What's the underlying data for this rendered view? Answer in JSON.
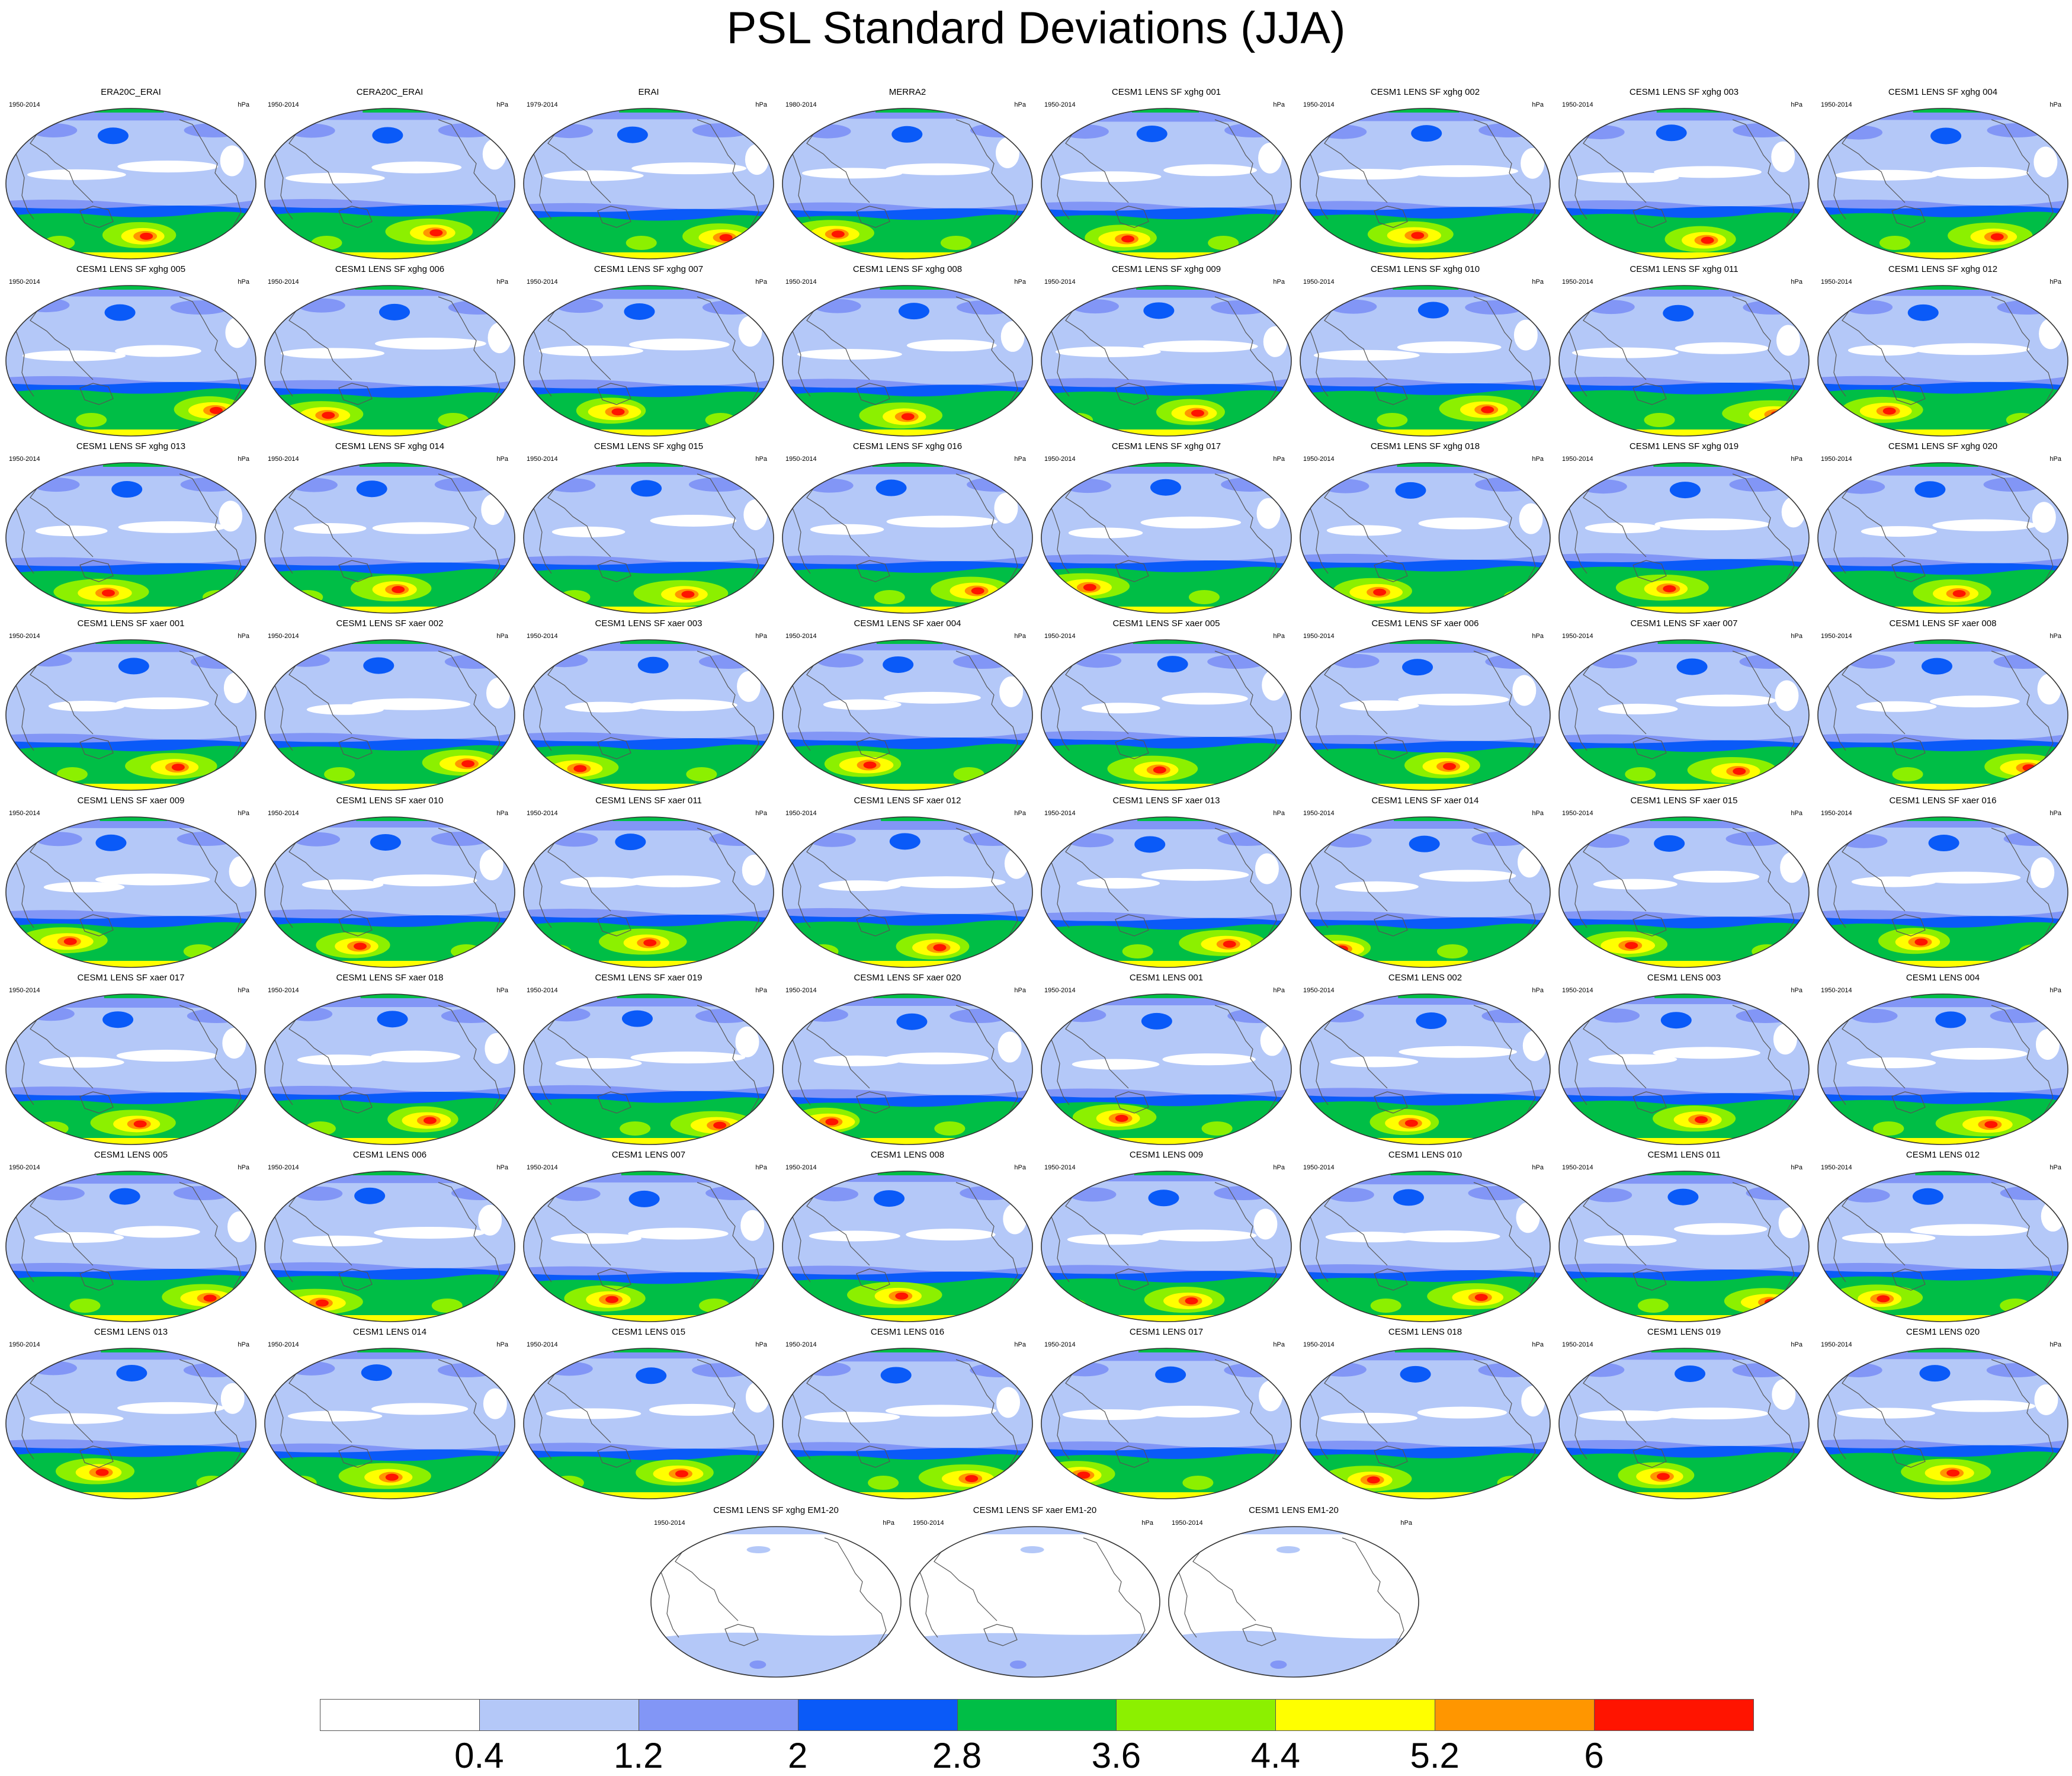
{
  "title": "PSL Standard Deviations (JJA)",
  "chart_data": {
    "type": "heatmap",
    "title": "PSL Standard Deviations (JJA)",
    "season": "JJA",
    "variable": "PSL",
    "units": "hPa",
    "projection": "global map (Robinson-like, Pacific-centered)",
    "panels": [
      {
        "name": "ERA20C_ERAI",
        "period": "1950-2014",
        "units": "hPa"
      },
      {
        "name": "CERA20C_ERAI",
        "period": "1950-2014",
        "units": "hPa"
      },
      {
        "name": "ERAI",
        "period": "1979-2014",
        "units": "hPa"
      },
      {
        "name": "MERRA2",
        "period": "1980-2014",
        "units": "hPa"
      },
      {
        "name": "CESM1 LENS SF xghg 001",
        "period": "1950-2014",
        "units": "hPa"
      },
      {
        "name": "CESM1 LENS SF xghg 002",
        "period": "1950-2014",
        "units": "hPa"
      },
      {
        "name": "CESM1 LENS SF xghg 003",
        "period": "1950-2014",
        "units": "hPa"
      },
      {
        "name": "CESM1 LENS SF xghg 004",
        "period": "1950-2014",
        "units": "hPa"
      },
      {
        "name": "CESM1 LENS SF xghg 005",
        "period": "1950-2014",
        "units": "hPa"
      },
      {
        "name": "CESM1 LENS SF xghg 006",
        "period": "1950-2014",
        "units": "hPa"
      },
      {
        "name": "CESM1 LENS SF xghg 007",
        "period": "1950-2014",
        "units": "hPa"
      },
      {
        "name": "CESM1 LENS SF xghg 008",
        "period": "1950-2014",
        "units": "hPa"
      },
      {
        "name": "CESM1 LENS SF xghg 009",
        "period": "1950-2014",
        "units": "hPa"
      },
      {
        "name": "CESM1 LENS SF xghg 010",
        "period": "1950-2014",
        "units": "hPa"
      },
      {
        "name": "CESM1 LENS SF xghg 011",
        "period": "1950-2014",
        "units": "hPa"
      },
      {
        "name": "CESM1 LENS SF xghg 012",
        "period": "1950-2014",
        "units": "hPa"
      },
      {
        "name": "CESM1 LENS SF xghg 013",
        "period": "1950-2014",
        "units": "hPa"
      },
      {
        "name": "CESM1 LENS SF xghg 014",
        "period": "1950-2014",
        "units": "hPa"
      },
      {
        "name": "CESM1 LENS SF xghg 015",
        "period": "1950-2014",
        "units": "hPa"
      },
      {
        "name": "CESM1 LENS SF xghg 016",
        "period": "1950-2014",
        "units": "hPa"
      },
      {
        "name": "CESM1 LENS SF xghg 017",
        "period": "1950-2014",
        "units": "hPa"
      },
      {
        "name": "CESM1 LENS SF xghg 018",
        "period": "1950-2014",
        "units": "hPa"
      },
      {
        "name": "CESM1 LENS SF xghg 019",
        "period": "1950-2014",
        "units": "hPa"
      },
      {
        "name": "CESM1 LENS SF xghg 020",
        "period": "1950-2014",
        "units": "hPa"
      },
      {
        "name": "CESM1 LENS SF xaer 001",
        "period": "1950-2014",
        "units": "hPa"
      },
      {
        "name": "CESM1 LENS SF xaer 002",
        "period": "1950-2014",
        "units": "hPa"
      },
      {
        "name": "CESM1 LENS SF xaer 003",
        "period": "1950-2014",
        "units": "hPa"
      },
      {
        "name": "CESM1 LENS SF xaer 004",
        "period": "1950-2014",
        "units": "hPa"
      },
      {
        "name": "CESM1 LENS SF xaer 005",
        "period": "1950-2014",
        "units": "hPa"
      },
      {
        "name": "CESM1 LENS SF xaer 006",
        "period": "1950-2014",
        "units": "hPa"
      },
      {
        "name": "CESM1 LENS SF xaer 007",
        "period": "1950-2014",
        "units": "hPa"
      },
      {
        "name": "CESM1 LENS SF xaer 008",
        "period": "1950-2014",
        "units": "hPa"
      },
      {
        "name": "CESM1 LENS SF xaer 009",
        "period": "1950-2014",
        "units": "hPa"
      },
      {
        "name": "CESM1 LENS SF xaer 010",
        "period": "1950-2014",
        "units": "hPa"
      },
      {
        "name": "CESM1 LENS SF xaer 011",
        "period": "1950-2014",
        "units": "hPa"
      },
      {
        "name": "CESM1 LENS SF xaer 012",
        "period": "1950-2014",
        "units": "hPa"
      },
      {
        "name": "CESM1 LENS SF xaer 013",
        "period": "1950-2014",
        "units": "hPa"
      },
      {
        "name": "CESM1 LENS SF xaer 014",
        "period": "1950-2014",
        "units": "hPa"
      },
      {
        "name": "CESM1 LENS SF xaer 015",
        "period": "1950-2014",
        "units": "hPa"
      },
      {
        "name": "CESM1 LENS SF xaer 016",
        "period": "1950-2014",
        "units": "hPa"
      },
      {
        "name": "CESM1 LENS SF xaer 017",
        "period": "1950-2014",
        "units": "hPa"
      },
      {
        "name": "CESM1 LENS SF xaer 018",
        "period": "1950-2014",
        "units": "hPa"
      },
      {
        "name": "CESM1 LENS SF xaer 019",
        "period": "1950-2014",
        "units": "hPa"
      },
      {
        "name": "CESM1 LENS SF xaer 020",
        "period": "1950-2014",
        "units": "hPa"
      },
      {
        "name": "CESM1 LENS 001",
        "period": "1950-2014",
        "units": "hPa"
      },
      {
        "name": "CESM1 LENS 002",
        "period": "1950-2014",
        "units": "hPa"
      },
      {
        "name": "CESM1 LENS 003",
        "period": "1950-2014",
        "units": "hPa"
      },
      {
        "name": "CESM1 LENS 004",
        "period": "1950-2014",
        "units": "hPa"
      },
      {
        "name": "CESM1 LENS 005",
        "period": "1950-2014",
        "units": "hPa"
      },
      {
        "name": "CESM1 LENS 006",
        "period": "1950-2014",
        "units": "hPa"
      },
      {
        "name": "CESM1 LENS 007",
        "period": "1950-2014",
        "units": "hPa"
      },
      {
        "name": "CESM1 LENS 008",
        "period": "1950-2014",
        "units": "hPa"
      },
      {
        "name": "CESM1 LENS 009",
        "period": "1950-2014",
        "units": "hPa"
      },
      {
        "name": "CESM1 LENS 010",
        "period": "1950-2014",
        "units": "hPa"
      },
      {
        "name": "CESM1 LENS 011",
        "period": "1950-2014",
        "units": "hPa"
      },
      {
        "name": "CESM1 LENS 012",
        "period": "1950-2014",
        "units": "hPa"
      },
      {
        "name": "CESM1 LENS 013",
        "period": "1950-2014",
        "units": "hPa"
      },
      {
        "name": "CESM1 LENS 014",
        "period": "1950-2014",
        "units": "hPa"
      },
      {
        "name": "CESM1 LENS 015",
        "period": "1950-2014",
        "units": "hPa"
      },
      {
        "name": "CESM1 LENS 016",
        "period": "1950-2014",
        "units": "hPa"
      },
      {
        "name": "CESM1 LENS 017",
        "period": "1950-2014",
        "units": "hPa"
      },
      {
        "name": "CESM1 LENS 018",
        "period": "1950-2014",
        "units": "hPa"
      },
      {
        "name": "CESM1 LENS 019",
        "period": "1950-2014",
        "units": "hPa"
      },
      {
        "name": "CESM1 LENS 020",
        "period": "1950-2014",
        "units": "hPa"
      }
    ],
    "ensemble_mean_panels": [
      {
        "name": "CESM1 LENS SF xghg EM1-20",
        "period": "1950-2014",
        "units": "hPa"
      },
      {
        "name": "CESM1 LENS SF xaer EM1-20",
        "period": "1950-2014",
        "units": "hPa"
      },
      {
        "name": "CESM1 LENS EM1-20",
        "period": "1950-2014",
        "units": "hPa"
      }
    ],
    "colorbar": {
      "levels": [
        0.4,
        1.2,
        2,
        2.8,
        3.6,
        4.4,
        5.2,
        6
      ],
      "tick_labels": [
        "0.4",
        "1.2",
        "2",
        "2.8",
        "3.6",
        "4.4",
        "5.2",
        "6"
      ],
      "colors": [
        "#ffffff",
        "#b4c8f8",
        "#8296f6",
        "#0a5af8",
        "#00be46",
        "#8cf000",
        "#ffff00",
        "#ff9600",
        "#ff1400"
      ]
    }
  }
}
